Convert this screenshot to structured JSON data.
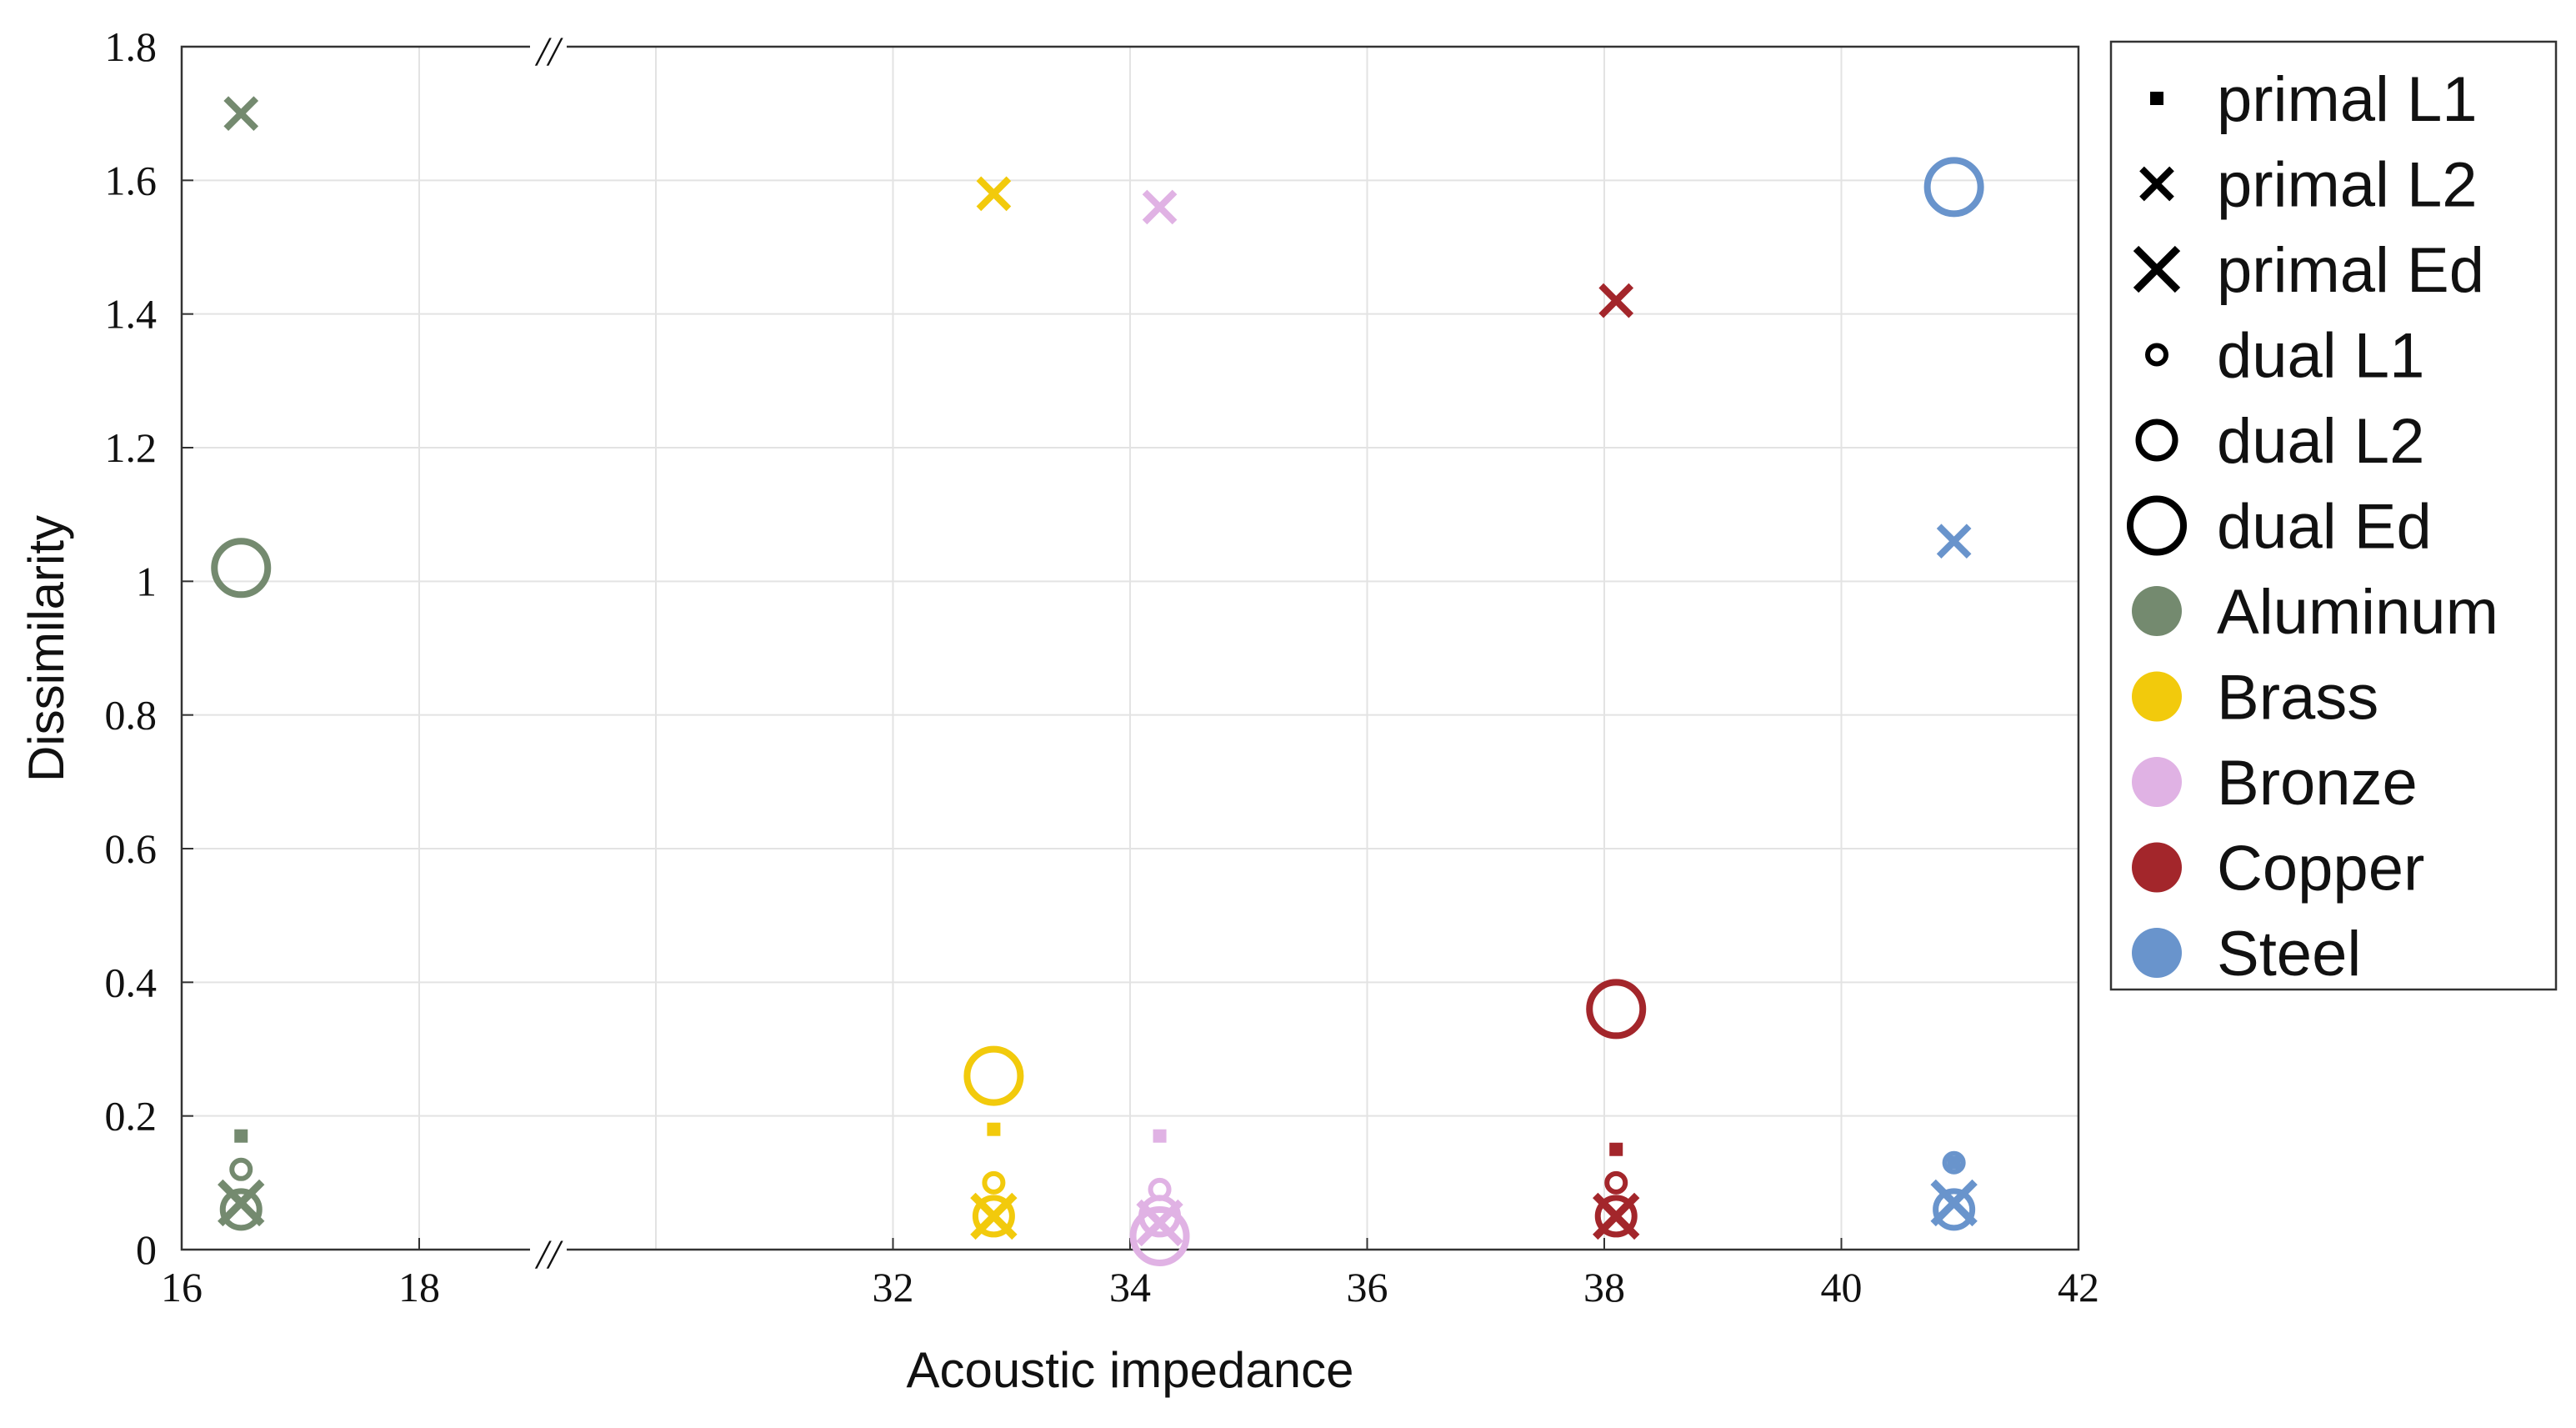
{
  "chart_data": {
    "type": "scatter",
    "xlabel": "Acoustic impedance",
    "ylabel": "Dissimilarity",
    "axis_break": {
      "from": 18,
      "to": 30,
      "mark": "//"
    },
    "xticks": [
      16,
      18,
      32,
      34,
      36,
      38,
      40,
      42
    ],
    "xlim": [
      16,
      42
    ],
    "ylim": [
      0,
      1.8
    ],
    "yticks": [
      {
        "value": 0,
        "label": "0"
      },
      {
        "value": 0.2,
        "label": "0.2"
      },
      {
        "value": 0.4,
        "label": "0.4"
      },
      {
        "value": 0.6,
        "label": "0.6"
      },
      {
        "value": 0.8,
        "label": "0.8"
      },
      {
        "value": 1.0,
        "label": "1"
      },
      {
        "value": 1.2,
        "label": "1.2"
      },
      {
        "value": 1.4,
        "label": "1.4"
      },
      {
        "value": 1.6,
        "label": "1.6"
      },
      {
        "value": 1.8,
        "label": "1.8"
      }
    ],
    "grid": true,
    "legend_position": "right-outside",
    "measures": [
      {
        "key": "pL1",
        "label": "primal L1",
        "marker": "square-small"
      },
      {
        "key": "pL2",
        "label": "primal L2",
        "marker": "x-medium"
      },
      {
        "key": "pEd",
        "label": "primal Ed",
        "marker": "x-large"
      },
      {
        "key": "dL1",
        "label": "dual L1",
        "marker": "circle-small"
      },
      {
        "key": "dL2",
        "label": "dual L2",
        "marker": "circle-medium"
      },
      {
        "key": "dEd",
        "label": "dual Ed",
        "marker": "circle-large"
      }
    ],
    "series": [
      {
        "name": "Aluminum",
        "color": "#748a6f",
        "x": 16.5,
        "values": {
          "pL1": 0.17,
          "pL2": 1.7,
          "pEd": 0.07,
          "dL1": 0.12,
          "dL2": 0.06,
          "dEd": 1.02
        }
      },
      {
        "name": "Brass",
        "color": "#f2ca0c",
        "x": 32.85,
        "values": {
          "pL1": 0.18,
          "pL2": 1.58,
          "pEd": 0.05,
          "dL1": 0.1,
          "dL2": 0.05,
          "dEd": 0.26
        }
      },
      {
        "name": "Bronze",
        "color": "#e0b2e4",
        "x": 34.25,
        "values": {
          "pL1": 0.17,
          "pL2": 1.56,
          "pEd": 0.04,
          "dL1": 0.09,
          "dL2": 0.05,
          "dEd": 0.02
        }
      },
      {
        "name": "Copper",
        "color": "#a3262b",
        "x": 38.1,
        "values": {
          "pL1": 0.15,
          "pL2": 1.42,
          "pEd": 0.05,
          "dL1": 0.1,
          "dL2": 0.05,
          "dEd": 0.36
        }
      },
      {
        "name": "Steel",
        "color": "#6994cc",
        "x": 40.95,
        "values": {
          "pL1": 0.13,
          "pL2": 1.06,
          "pEd": 0.07,
          "dL1": 0.13,
          "dL2": 0.06,
          "dEd": 1.59
        }
      }
    ]
  }
}
